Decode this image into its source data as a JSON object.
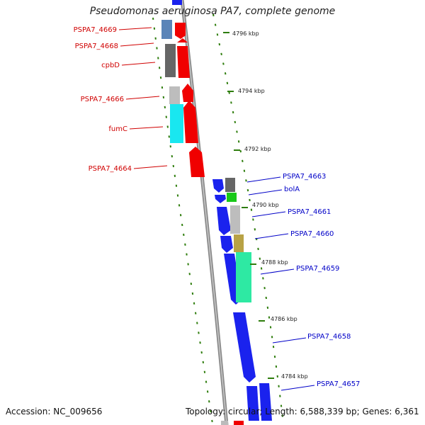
{
  "title": "Pseudomonas aeruginosa PA7, complete genome",
  "footer": {
    "accession": "Accession: NC_009656",
    "topology": "Topology: circular; Length: 6,588,339 bp; Genes: 6,361"
  },
  "colors": {
    "left_label": "#d00000",
    "right_label": "#0000c8",
    "kbp_tick": "#2e7d0c",
    "backbone": "#8a8a8a",
    "forward_gene": "#f00000",
    "reverse_gene": "#0000ee"
  },
  "kbp_marks": [
    {
      "label": "4796 kbp"
    },
    {
      "label": "4794 kbp"
    },
    {
      "label": "4792 kbp"
    },
    {
      "label": "4790 kbp"
    },
    {
      "label": "4788 kbp"
    },
    {
      "label": "4786 kbp"
    },
    {
      "label": "4784 kbp"
    }
  ],
  "left_genes": [
    {
      "name": "PSPA7_4669"
    },
    {
      "name": "PSPA7_4668"
    },
    {
      "name": "cpbD"
    },
    {
      "name": "PSPA7_4666"
    },
    {
      "name": "fumC"
    },
    {
      "name": "PSPA7_4664"
    }
  ],
  "right_genes": [
    {
      "name": "PSPA7_4663"
    },
    {
      "name": "bolA"
    },
    {
      "name": "PSPA7_4661"
    },
    {
      "name": "PSPA7_4660"
    },
    {
      "name": "PSPA7_4659"
    },
    {
      "name": "PSPA7_4658"
    },
    {
      "name": "PSPA7_4657"
    }
  ]
}
